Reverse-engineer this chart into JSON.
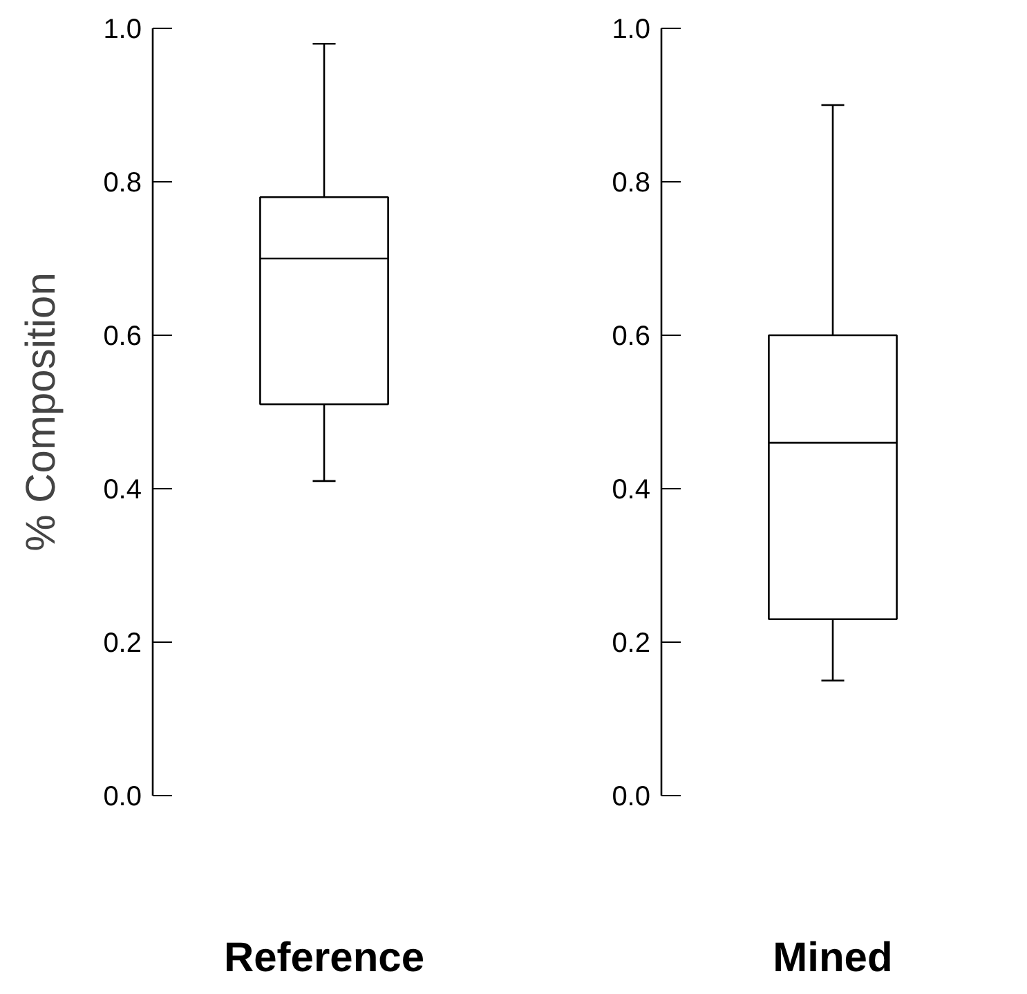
{
  "chart_data": [
    {
      "type": "box",
      "ylabel": "% Composition",
      "categories": [
        "Reference"
      ],
      "boxes": [
        {
          "low": 0.41,
          "q1": 0.51,
          "median": 0.7,
          "q3": 0.78,
          "high": 0.98
        }
      ],
      "ylim": [
        0.0,
        1.0
      ],
      "yticks": [
        {
          "value": 0.0,
          "label": "0.0"
        },
        {
          "value": 0.2,
          "label": "0.2"
        },
        {
          "value": 0.4,
          "label": "0.4"
        },
        {
          "value": 0.6,
          "label": "0.6"
        },
        {
          "value": 0.8,
          "label": "0.8"
        },
        {
          "value": 1.0,
          "label": "1.0"
        }
      ],
      "grid": false
    },
    {
      "type": "box",
      "categories": [
        "Mined"
      ],
      "boxes": [
        {
          "low": 0.15,
          "q1": 0.23,
          "median": 0.46,
          "q3": 0.6,
          "high": 0.9
        }
      ],
      "ylim": [
        0.0,
        1.0
      ],
      "yticks": [
        {
          "value": 0.0,
          "label": "0.0"
        },
        {
          "value": 0.2,
          "label": "0.2"
        },
        {
          "value": 0.4,
          "label": "0.4"
        },
        {
          "value": 0.6,
          "label": "0.6"
        },
        {
          "value": 0.8,
          "label": "0.8"
        },
        {
          "value": 1.0,
          "label": "1.0"
        }
      ],
      "grid": false
    }
  ]
}
